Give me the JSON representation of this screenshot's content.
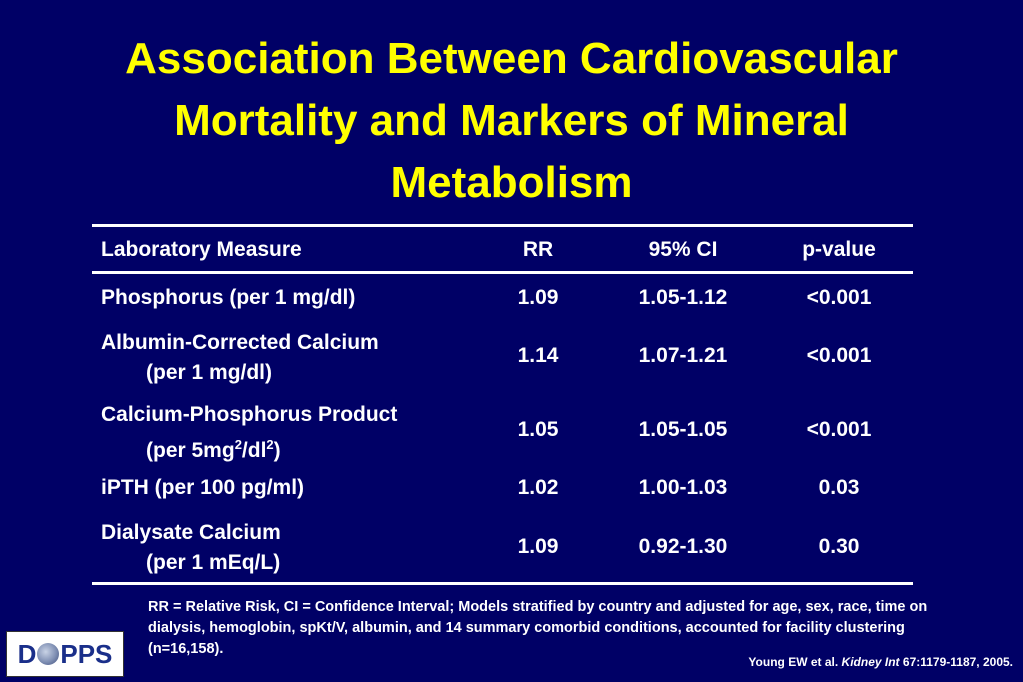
{
  "title": {
    "line1": "Association Between Cardiovascular",
    "line2": "Mortality and Markers of Mineral",
    "line3": "Metabolism"
  },
  "table": {
    "headers": {
      "measure": "Laboratory Measure",
      "rr": "RR",
      "ci": "95% CI",
      "pvalue": "p-value"
    },
    "rows": [
      {
        "measure_line1": "Phosphorus (per 1 mg/dl)",
        "measure_line2": "",
        "rr": "1.09",
        "ci": "1.05-1.12",
        "pvalue": "<0.001"
      },
      {
        "measure_line1": "Albumin-Corrected Calcium",
        "measure_line2": "(per 1 mg/dl)",
        "rr": "1.14",
        "ci": "1.07-1.21",
        "pvalue": "<0.001"
      },
      {
        "measure_line1": "Calcium-Phosphorus Product",
        "measure_line2_a": "(per 5mg",
        "measure_line2_sup1": "2",
        "measure_line2_b": "/dl",
        "measure_line2_sup2": "2",
        "measure_line2_c": ")",
        "rr": "1.05",
        "ci": "1.05-1.05",
        "pvalue": "<0.001"
      },
      {
        "measure_line1": "iPTH (per 100 pg/ml)",
        "measure_line2": "",
        "rr": "1.02",
        "ci": "1.00-1.03",
        "pvalue": "0.03"
      },
      {
        "measure_line1": "Dialysate Calcium",
        "measure_line2": "(per 1 mEq/L)",
        "rr": "1.09",
        "ci": "0.92-1.30",
        "pvalue": "0.30"
      }
    ]
  },
  "footnote": "RR = Relative Risk, CI = Confidence Interval;  Models stratified by country and adjusted for age, sex, race, time on dialysis, hemoglobin, spKt/V, albumin, and 14 summary comorbid conditions, accounted for facility clustering (n=16,158).",
  "citation": {
    "authors": "Young EW et al. ",
    "journal": "Kidney Int",
    "details": " 67:1179-1187, 2005."
  },
  "logo": {
    "left": "D",
    "right": "PPS"
  },
  "colors": {
    "background": "#000066",
    "title": "#ffff00",
    "text": "#ffffff"
  }
}
